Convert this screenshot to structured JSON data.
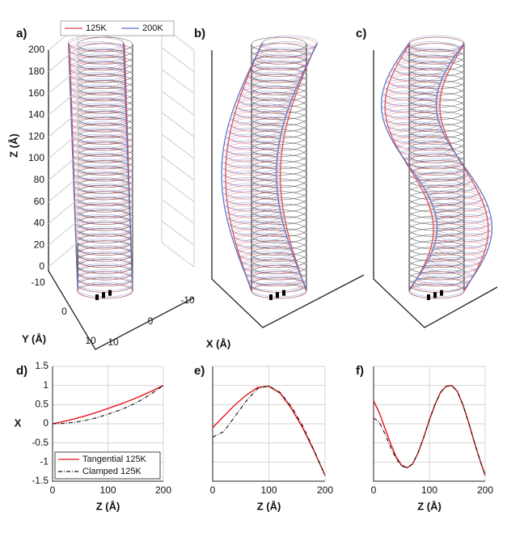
{
  "chart_data": [
    {
      "type": "tube3d",
      "panel_label": "a)",
      "legend": "top",
      "series": [
        {
          "name": "125K",
          "color": "#e0484f"
        },
        {
          "name": "200K",
          "color": "#5b73c8"
        }
      ],
      "zlabel": "Z (Å)",
      "zlim": [
        0,
        200
      ],
      "zticks": [
        0,
        20,
        40,
        60,
        80,
        100,
        120,
        140,
        160,
        180,
        200
      ],
      "ylabel": "Y (Å)",
      "ylim": [
        -10,
        10
      ],
      "yticks": [
        -10,
        0,
        10
      ],
      "xlabel": "X (Å)",
      "xlim": [
        -10,
        10
      ],
      "xticks": [
        -10,
        0,
        10
      ]
    },
    {
      "type": "tube3d",
      "panel_label": "b)"
    },
    {
      "type": "tube3d",
      "panel_label": "c)"
    },
    {
      "type": "line",
      "panel_label": "d)",
      "xlabel": "Z (Å)",
      "ylabel": "X",
      "legend": "lower left",
      "grid": true,
      "xlim": [
        0,
        200
      ],
      "xticks": [
        0,
        100,
        200
      ],
      "ylim": [
        -1.5,
        1.5
      ],
      "yticks": [
        -1.5,
        -1,
        -0.5,
        0,
        0.5,
        1,
        1.5
      ],
      "ytick_labels": true,
      "x": [
        0,
        20,
        40,
        60,
        80,
        100,
        120,
        140,
        160,
        180,
        200
      ],
      "series": [
        {
          "name": "Tangential 125K",
          "color": "#e8141c",
          "style": "solid",
          "values": [
            0,
            0.06,
            0.13,
            0.21,
            0.3,
            0.4,
            0.5,
            0.61,
            0.73,
            0.86,
            1.0
          ]
        },
        {
          "name": "Clamped 125K",
          "color": "#111111",
          "style": "dashdot",
          "values": [
            0,
            0.01,
            0.04,
            0.09,
            0.16,
            0.25,
            0.35,
            0.47,
            0.62,
            0.8,
            1.0
          ]
        }
      ]
    },
    {
      "type": "line",
      "panel_label": "e)",
      "xlabel": "Z (Å)",
      "grid": true,
      "xlim": [
        0,
        200
      ],
      "xticks": [
        0,
        100,
        200
      ],
      "ylim": [
        -1.5,
        1.5
      ],
      "yticks": [
        -1.5,
        -1,
        -0.5,
        0,
        0.5,
        1,
        1.5
      ],
      "ytick_labels": false,
      "x": [
        0,
        20,
        40,
        60,
        80,
        100,
        120,
        140,
        160,
        180,
        200
      ],
      "series": [
        {
          "color": "#e8141c",
          "style": "solid",
          "values": [
            -0.1,
            0.2,
            0.5,
            0.75,
            0.95,
            0.98,
            0.8,
            0.4,
            -0.1,
            -0.7,
            -1.35
          ]
        },
        {
          "color": "#111111",
          "style": "dashdot",
          "values": [
            -0.35,
            -0.2,
            0.2,
            0.6,
            0.92,
            0.99,
            0.82,
            0.45,
            -0.05,
            -0.68,
            -1.35
          ]
        }
      ]
    },
    {
      "type": "line",
      "panel_label": "f)",
      "xlabel": "Z (Å)",
      "grid": true,
      "xlim": [
        0,
        200
      ],
      "xticks": [
        0,
        100,
        200
      ],
      "ylim": [
        -1.5,
        1.5
      ],
      "yticks": [
        -1.5,
        -1,
        -0.5,
        0,
        0.5,
        1,
        1.5
      ],
      "ytick_labels": false,
      "x": [
        0,
        10,
        20,
        30,
        40,
        50,
        60,
        70,
        80,
        90,
        100,
        110,
        120,
        130,
        140,
        150,
        160,
        170,
        180,
        190,
        200
      ],
      "series": [
        {
          "color": "#e8141c",
          "style": "solid",
          "values": [
            0.6,
            0.3,
            -0.1,
            -0.5,
            -0.85,
            -1.08,
            -1.15,
            -1.05,
            -0.75,
            -0.35,
            0.1,
            0.5,
            0.82,
            0.98,
            1.0,
            0.85,
            0.5,
            0.05,
            -0.45,
            -0.92,
            -1.35
          ]
        },
        {
          "color": "#111111",
          "style": "dashdot",
          "values": [
            0.15,
            0.05,
            -0.25,
            -0.6,
            -0.9,
            -1.1,
            -1.15,
            -1.05,
            -0.75,
            -0.35,
            0.1,
            0.5,
            0.82,
            0.98,
            1.0,
            0.85,
            0.5,
            0.05,
            -0.45,
            -0.92,
            -1.35
          ]
        }
      ]
    }
  ]
}
